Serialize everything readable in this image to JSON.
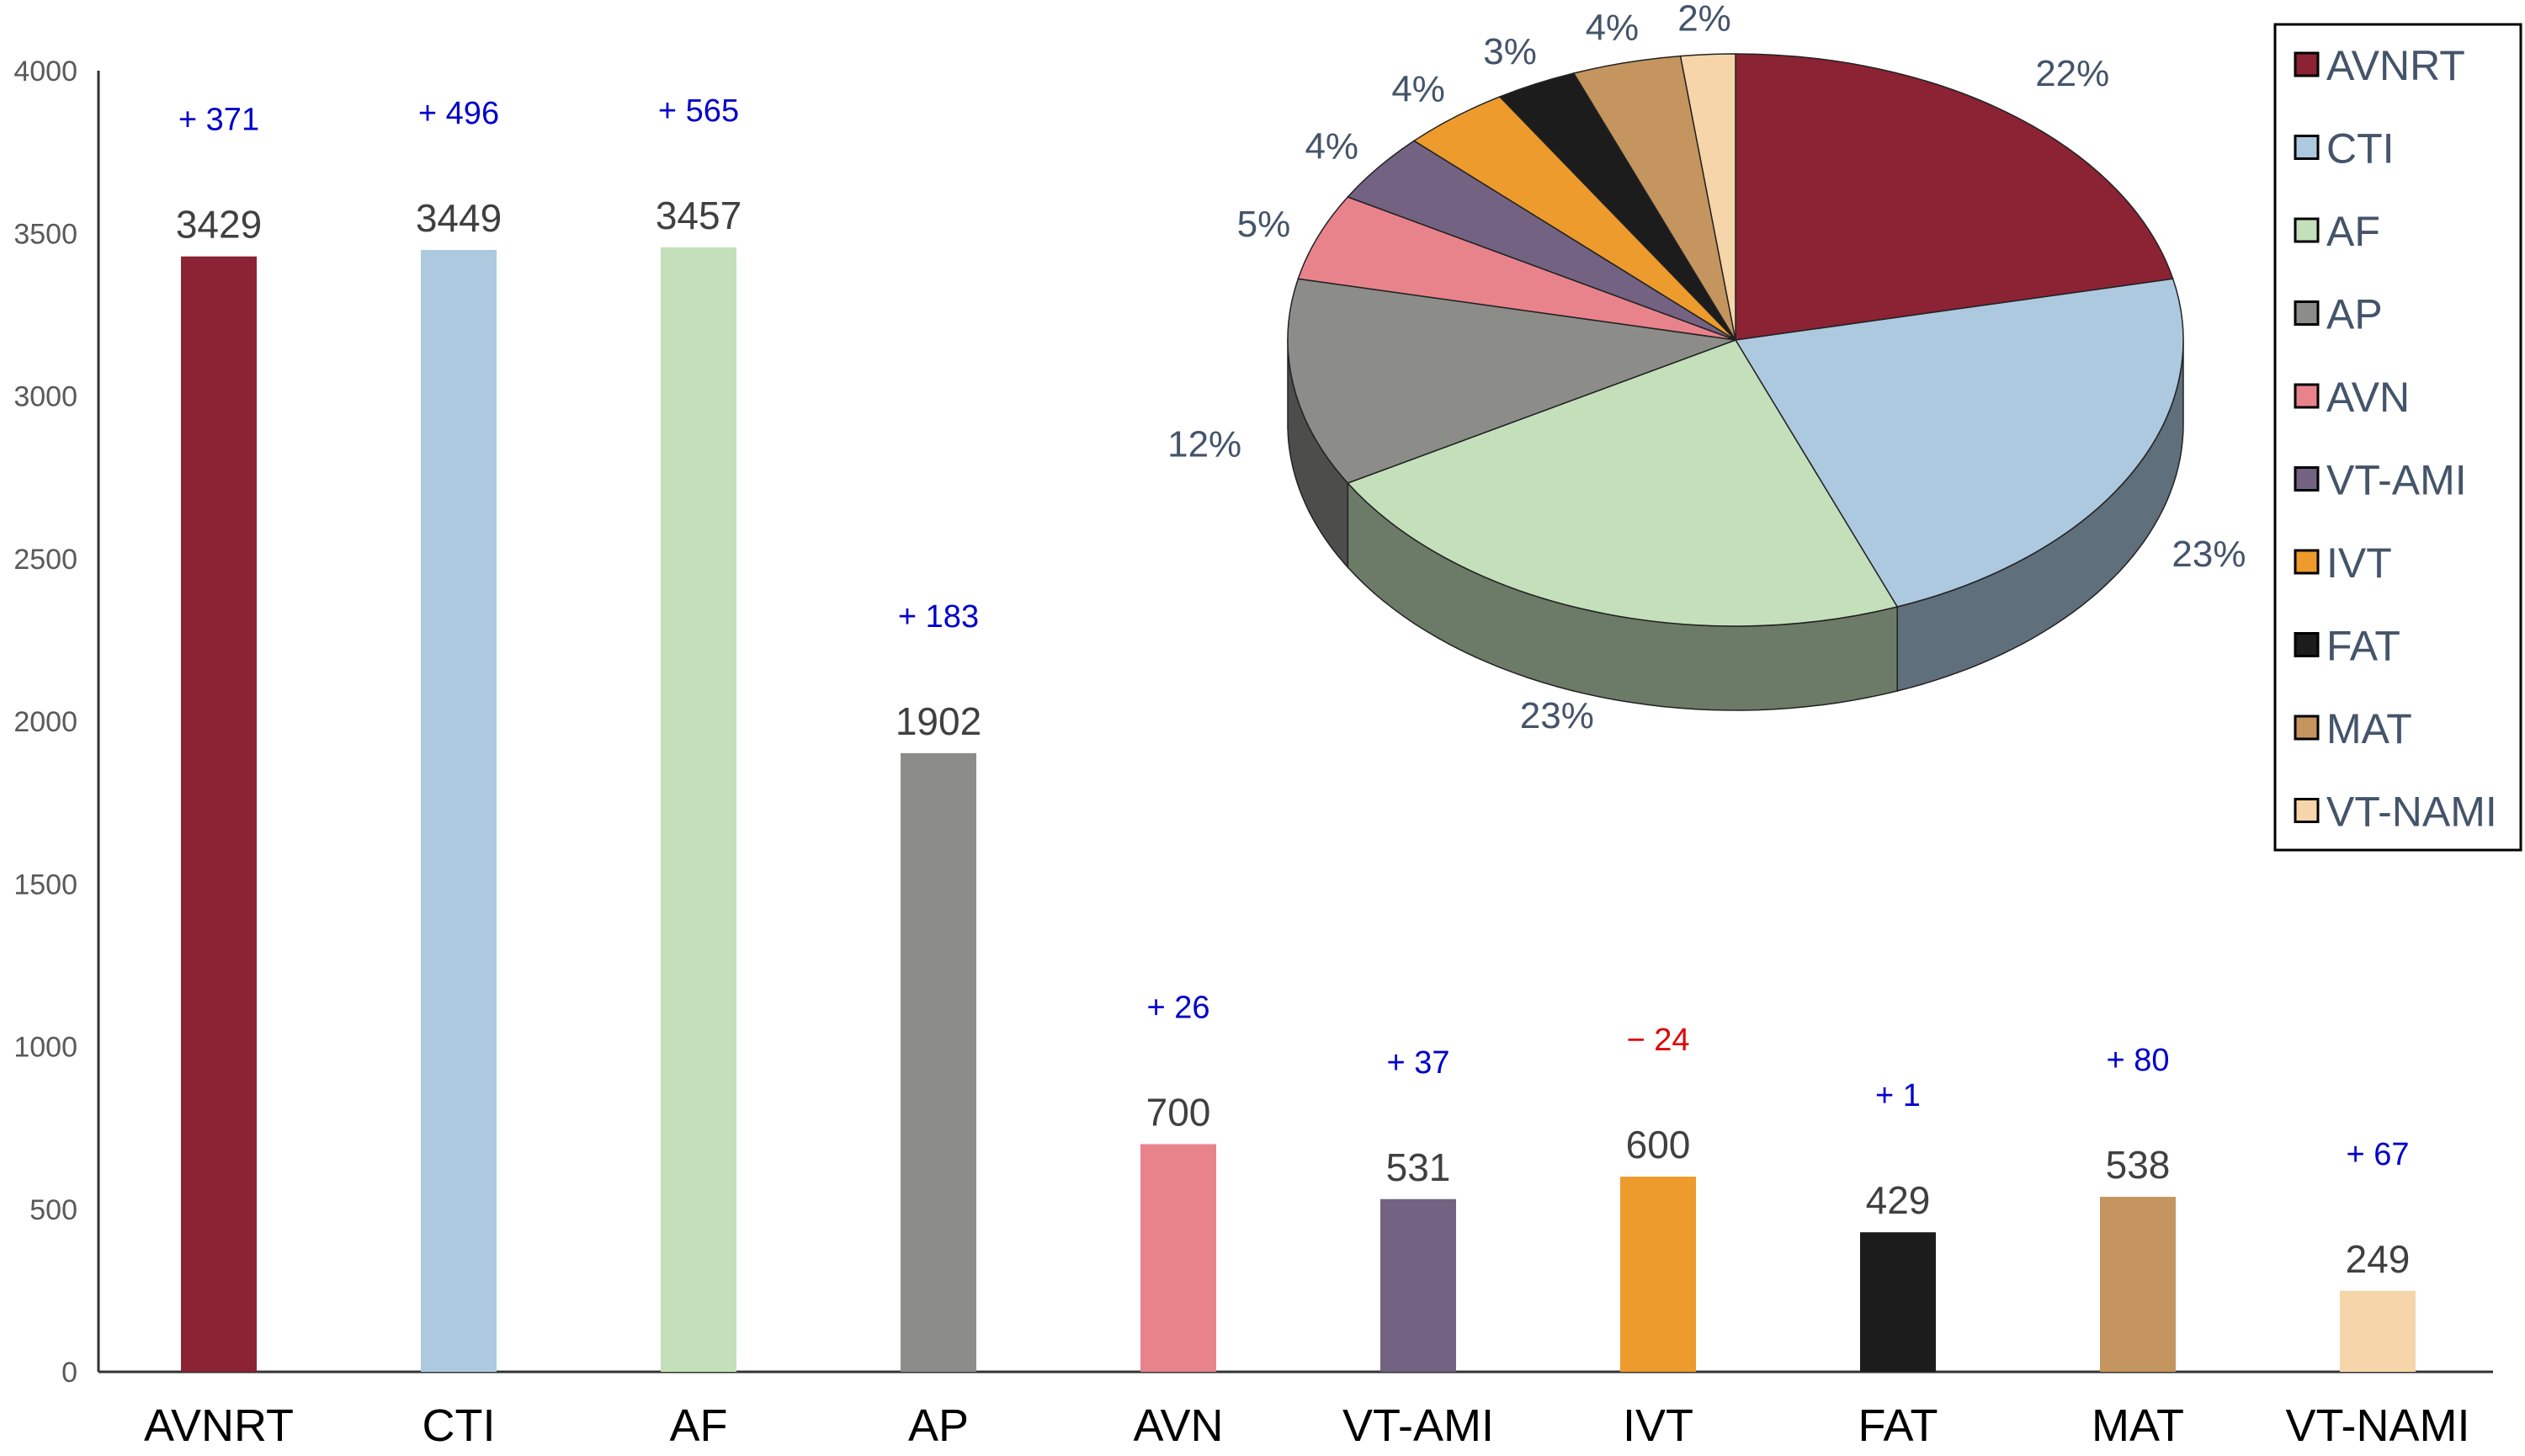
{
  "chart_data": [
    {
      "type": "bar",
      "categories": [
        "AVNRT",
        "CTI",
        "AF",
        "AP",
        "AVN",
        "VT-AMI",
        "IVT",
        "FAT",
        "MAT",
        "VT-NAMI"
      ],
      "values": [
        3429,
        3449,
        3457,
        1902,
        700,
        531,
        600,
        429,
        538,
        249
      ],
      "change_labels": [
        "+ 371",
        "+ 496",
        "+ 565",
        "+ 183",
        "+ 26",
        "+ 37",
        "− 24",
        "+ 1",
        "+ 80",
        "+ 67"
      ],
      "change_values": [
        371,
        496,
        565,
        183,
        26,
        37,
        -24,
        1,
        80,
        67
      ],
      "colors": [
        "#8b2334",
        "#adc9df",
        "#c4e0bb",
        "#8c8c89",
        "#e8838c",
        "#736282",
        "#ec9b2c",
        "#1c1c1c",
        "#c4955e",
        "#f6d5ab"
      ],
      "positive_color": "#0000cc",
      "negative_color": "#e00000",
      "ylim": [
        0,
        4000
      ],
      "yticks": [
        "0",
        "500",
        "1000",
        "1500",
        "2000",
        "2500",
        "3000",
        "3500",
        "4000"
      ],
      "grid": false,
      "title": "",
      "xlabel": "",
      "ylabel": ""
    },
    {
      "type": "pie",
      "style": "3d",
      "categories": [
        "AVNRT",
        "CTI",
        "AF",
        "AP",
        "AVN",
        "VT-AMI",
        "IVT",
        "FAT",
        "MAT",
        "VT-NAMI"
      ],
      "values": [
        22,
        23,
        23,
        12,
        5,
        4,
        4,
        3,
        4,
        2
      ],
      "labels": [
        "22%",
        "23%",
        "23%",
        "12%",
        "5%",
        "4%",
        "4%",
        "3%",
        "4%",
        "2%"
      ],
      "colors": [
        "#8b2334",
        "#adc9df",
        "#c4e0bb",
        "#8c8c89",
        "#e8838c",
        "#736282",
        "#ec9b2c",
        "#1c1c1c",
        "#c4955e",
        "#f6d5ab"
      ],
      "label_color": "#44546a",
      "legend_position": "right",
      "legend": [
        "AVNRT",
        "CTI",
        "AF",
        "AP",
        "AVN",
        "VT-AMI",
        "IVT",
        "FAT",
        "MAT",
        "VT-NAMI"
      ]
    }
  ]
}
